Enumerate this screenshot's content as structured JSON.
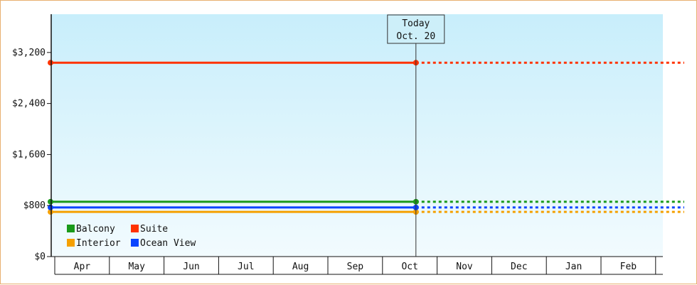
{
  "chart_data": {
    "type": "line",
    "title": "",
    "xlabel": "",
    "ylabel": "",
    "categories": [
      "Apr",
      "May",
      "Jun",
      "Jul",
      "Aug",
      "Sep",
      "Oct",
      "Nov",
      "Dec",
      "Jan",
      "Feb"
    ],
    "y_ticks": [
      "$0",
      "$800",
      "$1,600",
      "$2,400",
      "$3,200"
    ],
    "y_tick_values": [
      0,
      800,
      1600,
      2400,
      3200
    ],
    "ylim": [
      0,
      3800
    ],
    "grid": false,
    "today_marker": {
      "line1": "Today",
      "line2": "Oct. 20"
    },
    "legend_position": "bottom-left",
    "series": [
      {
        "name": "Balcony",
        "color": "#1a9a1a",
        "value": 860,
        "projected": 860
      },
      {
        "name": "Suite",
        "color": "#ff3300",
        "value": 3040,
        "projected": 3040
      },
      {
        "name": "Interior",
        "color": "#f5a000",
        "value": 700,
        "projected": 700
      },
      {
        "name": "Ocean View",
        "color": "#0a44ff",
        "value": 770,
        "projected": 770
      }
    ]
  }
}
